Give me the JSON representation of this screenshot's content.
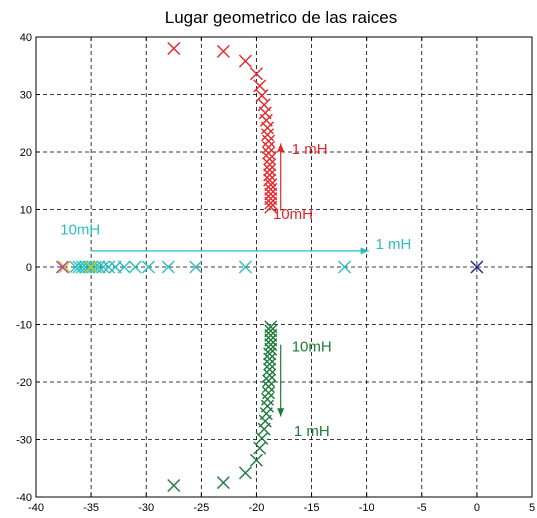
{
  "chart_data": {
    "type": "scatter",
    "title": "Lugar geometrico de las raices",
    "xlabel": "",
    "ylabel": "",
    "xlim": [
      -40,
      5
    ],
    "ylim": [
      -40,
      40
    ],
    "grid": true,
    "x_ticks": [
      -40,
      -35,
      -30,
      -25,
      -20,
      -15,
      -10,
      -5,
      0,
      5
    ],
    "y_ticks": [
      -40,
      -30,
      -20,
      -10,
      0,
      10,
      20,
      30,
      40
    ],
    "marker": "x",
    "series": [
      {
        "color": "#e8262a",
        "points": [
          [
            -27.5,
            38.0
          ],
          [
            -23.0,
            37.5
          ],
          [
            -21.0,
            35.8
          ],
          [
            -20.0,
            33.6
          ],
          [
            -19.7,
            31.5
          ],
          [
            -19.5,
            29.8
          ],
          [
            -19.3,
            28.2
          ],
          [
            -19.2,
            26.8
          ],
          [
            -19.1,
            25.5
          ],
          [
            -19.0,
            24.2
          ],
          [
            -19.0,
            23.0
          ],
          [
            -18.9,
            21.9
          ],
          [
            -18.9,
            20.8
          ],
          [
            -18.9,
            19.8
          ],
          [
            -18.8,
            18.8
          ],
          [
            -18.8,
            17.8
          ],
          [
            -18.8,
            16.9
          ],
          [
            -18.8,
            16.0
          ],
          [
            -18.8,
            15.1
          ],
          [
            -18.7,
            14.3
          ],
          [
            -18.7,
            13.5
          ],
          [
            -18.7,
            12.7
          ],
          [
            -18.7,
            11.9
          ],
          [
            -18.7,
            11.1
          ],
          [
            -18.7,
            10.4
          ]
        ]
      },
      {
        "color": "#1f7a3a",
        "points": [
          [
            -27.5,
            -38.0
          ],
          [
            -23.0,
            -37.5
          ],
          [
            -21.0,
            -35.8
          ],
          [
            -20.0,
            -33.6
          ],
          [
            -19.7,
            -31.5
          ],
          [
            -19.5,
            -29.8
          ],
          [
            -19.3,
            -28.2
          ],
          [
            -19.2,
            -26.8
          ],
          [
            -19.1,
            -25.5
          ],
          [
            -19.0,
            -24.2
          ],
          [
            -19.0,
            -23.0
          ],
          [
            -18.9,
            -21.9
          ],
          [
            -18.9,
            -20.8
          ],
          [
            -18.9,
            -19.8
          ],
          [
            -18.8,
            -18.8
          ],
          [
            -18.8,
            -17.8
          ],
          [
            -18.8,
            -16.9
          ],
          [
            -18.8,
            -16.0
          ],
          [
            -18.8,
            -15.1
          ],
          [
            -18.7,
            -14.3
          ],
          [
            -18.7,
            -13.5
          ],
          [
            -18.7,
            -12.7
          ],
          [
            -18.7,
            -11.9
          ],
          [
            -18.7,
            -11.1
          ],
          [
            -18.7,
            -10.4
          ]
        ]
      },
      {
        "color": "#2bbfbf",
        "points": [
          [
            -12.0,
            0
          ],
          [
            -21.0,
            0
          ],
          [
            -25.5,
            0
          ],
          [
            -28.0,
            0
          ],
          [
            -29.8,
            0
          ],
          [
            -31.0,
            0
          ],
          [
            -32.0,
            0
          ],
          [
            -32.8,
            0
          ],
          [
            -33.4,
            0
          ],
          [
            -33.9,
            0
          ],
          [
            -34.3,
            0
          ],
          [
            -34.6,
            0
          ],
          [
            -34.9,
            0
          ],
          [
            -35.2,
            0
          ],
          [
            -35.5,
            0
          ],
          [
            -35.8,
            0
          ],
          [
            -36.1,
            0
          ],
          [
            -36.4,
            0
          ]
        ]
      },
      {
        "color": "#c8c81e",
        "points": [
          [
            -35.0,
            0
          ],
          [
            -37.4,
            0
          ]
        ]
      },
      {
        "color": "#b03ab0",
        "points": [
          [
            -37.6,
            0
          ]
        ]
      },
      {
        "color": "#20209a",
        "points": [
          [
            0,
            0
          ]
        ]
      }
    ],
    "annotations": [
      {
        "text": "1 mH",
        "color": "#e8262a",
        "x": -16.8,
        "y": 20.5
      },
      {
        "text": "10mH",
        "color": "#e8262a",
        "x": -18.5,
        "y": 9.2
      },
      {
        "text": "10mH",
        "color": "#2bbfbf",
        "x": -37.8,
        "y": 6.5
      },
      {
        "text": "1 mH",
        "color": "#2bbfbf",
        "x": -9.2,
        "y": 4.0
      },
      {
        "text": "10mH",
        "color": "#1f7a3a",
        "x": -16.8,
        "y": -13.8
      },
      {
        "text": "1 mH",
        "color": "#1f7a3a",
        "x": -16.6,
        "y": -28.5
      }
    ],
    "arrows": [
      {
        "color": "#e8262a",
        "from": [
          -17.8,
          9.8
        ],
        "to": [
          -17.8,
          21.5
        ]
      },
      {
        "color": "#2bbfbf",
        "from": [
          -35.0,
          2.8
        ],
        "to": [
          -9.8,
          2.8
        ]
      },
      {
        "color": "#1f7a3a",
        "from": [
          -17.8,
          -13.5
        ],
        "to": [
          -17.8,
          -26.0
        ]
      }
    ]
  }
}
